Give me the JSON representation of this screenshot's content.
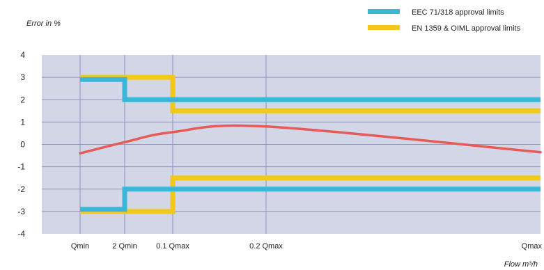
{
  "chart_data": {
    "type": "line",
    "ylabel": "Error in %",
    "xlabel_unit": "Flow m³/h",
    "ylim": [
      -4,
      4
    ],
    "yticks": [
      "4",
      "3",
      "2",
      "1",
      "0",
      "-1",
      "-2",
      "-3",
      "-4"
    ],
    "x_categories": [
      "Qmin",
      "2 Qmin",
      "0.1 Qmax",
      "0.2 Qmax",
      "Qmax"
    ],
    "grid": true,
    "legend_position": "top-right",
    "series": [
      {
        "name": "EEC 71/318 approval limits",
        "color": "#3bb5d8",
        "upper": [
          {
            "x": 0,
            "y": 2.9
          },
          {
            "x": 1,
            "y": 2.9
          },
          {
            "x": 1,
            "y": 2
          },
          {
            "x": 4,
            "y": 2
          }
        ],
        "lower": [
          {
            "x": 0,
            "y": -2.9
          },
          {
            "x": 1,
            "y": -2.9
          },
          {
            "x": 1,
            "y": -2
          },
          {
            "x": 4,
            "y": -2
          }
        ]
      },
      {
        "name": "EN 1359 & OIML approval limits",
        "color": "#f2c81c",
        "upper": [
          {
            "x": 0,
            "y": 3
          },
          {
            "x": 2,
            "y": 3
          },
          {
            "x": 2,
            "y": 1.5
          },
          {
            "x": 4,
            "y": 1.5
          }
        ],
        "lower": [
          {
            "x": 0,
            "y": -3
          },
          {
            "x": 2,
            "y": -3
          },
          {
            "x": 2,
            "y": -1.5
          },
          {
            "x": 4,
            "y": -1.5
          }
        ]
      }
    ],
    "curve": {
      "color": "#e85a55",
      "points": [
        {
          "x": 0,
          "y": -0.4
        },
        {
          "x": 1,
          "y": 0.1
        },
        {
          "x": 2,
          "y": 0.55
        },
        {
          "x": 3,
          "y": 0.8
        },
        {
          "x": 4,
          "y": -0.35
        }
      ]
    }
  }
}
